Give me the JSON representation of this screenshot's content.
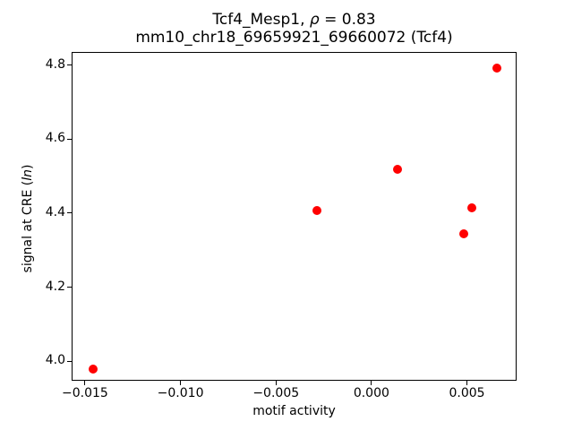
{
  "figure": {
    "title_line1": {
      "prefix": "Tcf4_Mesp1, ",
      "rho": "ρ",
      "suffix": " = 0.83"
    },
    "title_line2": "mm10_chr18_69659921_69660072 (Tcf4)",
    "xlabel": "motif activity",
    "ylabel": {
      "prefix": "signal at CRE (",
      "italic": "ln",
      "suffix": ")"
    }
  },
  "chart_data": {
    "type": "scatter",
    "title": "Tcf4_Mesp1, ρ = 0.83\nmm10_chr18_69659921_69660072 (Tcf4)",
    "xlabel": "motif activity",
    "ylabel": "signal at CRE (ln)",
    "marker_color": "#ff0000",
    "marker_diameter_px": 10,
    "grid": false,
    "legend": null,
    "xlim": [
      -0.0157,
      0.0076
    ],
    "ylim": [
      3.947,
      4.836
    ],
    "x_ticks": [
      {
        "value": -0.015,
        "label": "−0.015"
      },
      {
        "value": -0.01,
        "label": "−0.010"
      },
      {
        "value": -0.005,
        "label": "−0.005"
      },
      {
        "value": 0.0,
        "label": "0.000"
      },
      {
        "value": 0.005,
        "label": "0.005"
      }
    ],
    "y_ticks": [
      {
        "value": 4.0,
        "label": "4.0"
      },
      {
        "value": 4.2,
        "label": "4.2"
      },
      {
        "value": 4.4,
        "label": "4.4"
      },
      {
        "value": 4.6,
        "label": "4.6"
      },
      {
        "value": 4.8,
        "label": "4.8"
      }
    ],
    "points": [
      {
        "x": -0.0146,
        "y": 3.981
      },
      {
        "x": -0.0029,
        "y": 4.41
      },
      {
        "x": 0.0013,
        "y": 4.522
      },
      {
        "x": 0.0048,
        "y": 4.347
      },
      {
        "x": 0.0052,
        "y": 4.417
      },
      {
        "x": 0.0065,
        "y": 4.796
      }
    ]
  }
}
